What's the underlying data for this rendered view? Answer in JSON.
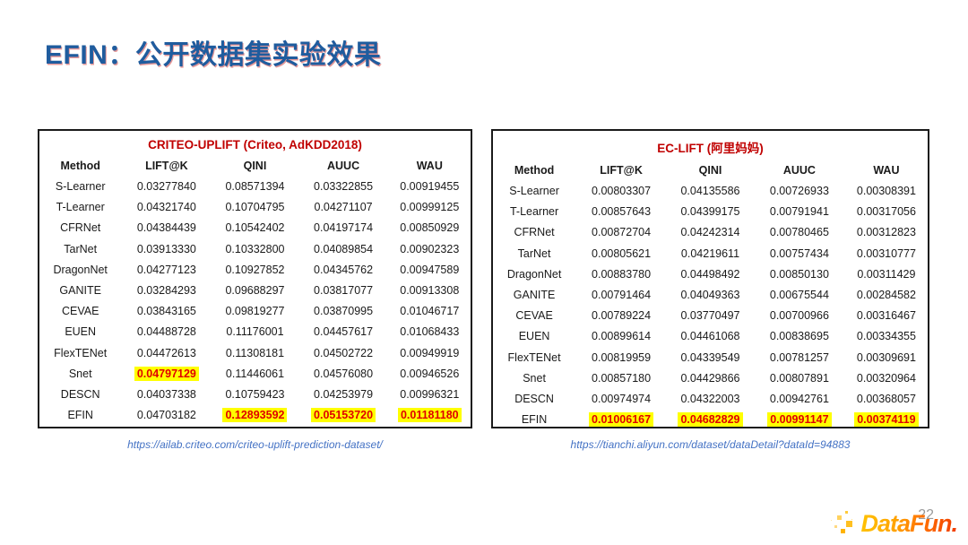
{
  "title": "EFIN：公开数据集实验效果",
  "colors": {
    "title_blue": "#1F5C9E",
    "table_title_red": "#C00000",
    "highlight_bg": "#FFFF00",
    "highlight_text": "#E00000",
    "url_blue": "#4472C4",
    "page_number_gray": "#9A9A9A",
    "logo_gradient_start": "#FFC200",
    "logo_gradient_end": "#F03C00"
  },
  "tables": [
    {
      "title": "CRITEO-UPLIFT (Criteo, AdKDD2018)",
      "columns": [
        "Method",
        "LIFT@K",
        "QINI",
        "AUUC",
        "WAU"
      ],
      "rows": [
        {
          "method": "S-Learner",
          "values": [
            "0.03277840",
            "0.08571394",
            "0.03322855",
            "0.00919455"
          ],
          "hl": []
        },
        {
          "method": "T-Learner",
          "values": [
            "0.04321740",
            "0.10704795",
            "0.04271107",
            "0.00999125"
          ],
          "hl": []
        },
        {
          "method": "CFRNet",
          "values": [
            "0.04384439",
            "0.10542402",
            "0.04197174",
            "0.00850929"
          ],
          "hl": []
        },
        {
          "method": "TarNet",
          "values": [
            "0.03913330",
            "0.10332800",
            "0.04089854",
            "0.00902323"
          ],
          "hl": []
        },
        {
          "method": "DragonNet",
          "values": [
            "0.04277123",
            "0.10927852",
            "0.04345762",
            "0.00947589"
          ],
          "hl": []
        },
        {
          "method": "GANITE",
          "values": [
            "0.03284293",
            "0.09688297",
            "0.03817077",
            "0.00913308"
          ],
          "hl": []
        },
        {
          "method": "CEVAE",
          "values": [
            "0.03843165",
            "0.09819277",
            "0.03870995",
            "0.01046717"
          ],
          "hl": []
        },
        {
          "method": "EUEN",
          "values": [
            "0.04488728",
            "0.11176001",
            "0.04457617",
            "0.01068433"
          ],
          "hl": []
        },
        {
          "method": "FlexTENet",
          "values": [
            "0.04472613",
            "0.11308181",
            "0.04502722",
            "0.00949919"
          ],
          "hl": []
        },
        {
          "method": "Snet",
          "values": [
            "0.04797129",
            "0.11446061",
            "0.04576080",
            "0.00946526"
          ],
          "hl": [
            0
          ]
        },
        {
          "method": "DESCN",
          "values": [
            "0.04037338",
            "0.10759423",
            "0.04253979",
            "0.00996321"
          ],
          "hl": []
        },
        {
          "method": "EFIN",
          "values": [
            "0.04703182",
            "0.12893592",
            "0.05153720",
            "0.01181180"
          ],
          "hl": [
            1,
            2,
            3
          ]
        }
      ],
      "source_url": "https://ailab.criteo.com/criteo-uplift-prediction-dataset/"
    },
    {
      "title": "EC-LIFT (阿里妈妈)",
      "columns": [
        "Method",
        "LIFT@K",
        "QINI",
        "AUUC",
        "WAU"
      ],
      "rows": [
        {
          "method": "S-Learner",
          "values": [
            "0.00803307",
            "0.04135586",
            "0.00726933",
            "0.00308391"
          ],
          "hl": []
        },
        {
          "method": "T-Learner",
          "values": [
            "0.00857643",
            "0.04399175",
            "0.00791941",
            "0.00317056"
          ],
          "hl": []
        },
        {
          "method": "CFRNet",
          "values": [
            "0.00872704",
            "0.04242314",
            "0.00780465",
            "0.00312823"
          ],
          "hl": []
        },
        {
          "method": "TarNet",
          "values": [
            "0.00805621",
            "0.04219611",
            "0.00757434",
            "0.00310777"
          ],
          "hl": []
        },
        {
          "method": "DragonNet",
          "values": [
            "0.00883780",
            "0.04498492",
            "0.00850130",
            "0.00311429"
          ],
          "hl": []
        },
        {
          "method": "GANITE",
          "values": [
            "0.00791464",
            "0.04049363",
            "0.00675544",
            "0.00284582"
          ],
          "hl": []
        },
        {
          "method": "CEVAE",
          "values": [
            "0.00789224",
            "0.03770497",
            "0.00700966",
            "0.00316467"
          ],
          "hl": []
        },
        {
          "method": "EUEN",
          "values": [
            "0.00899614",
            "0.04461068",
            "0.00838695",
            "0.00334355"
          ],
          "hl": []
        },
        {
          "method": "FlexTENet",
          "values": [
            "0.00819959",
            "0.04339549",
            "0.00781257",
            "0.00309691"
          ],
          "hl": []
        },
        {
          "method": "Snet",
          "values": [
            "0.00857180",
            "0.04429866",
            "0.00807891",
            "0.00320964"
          ],
          "hl": []
        },
        {
          "method": "DESCN",
          "values": [
            "0.00974974",
            "0.04322003",
            "0.00942761",
            "0.00368057"
          ],
          "hl": []
        },
        {
          "method": "EFIN",
          "values": [
            "0.01006167",
            "0.04682829",
            "0.00991147",
            "0.00374119"
          ],
          "hl": [
            0,
            1,
            2,
            3
          ]
        }
      ],
      "source_url": "https://tianchi.aliyun.com/dataset/dataDetail?dataId=94883"
    }
  ],
  "footer": {
    "page_number": "22",
    "logo_text": "DataFun."
  }
}
